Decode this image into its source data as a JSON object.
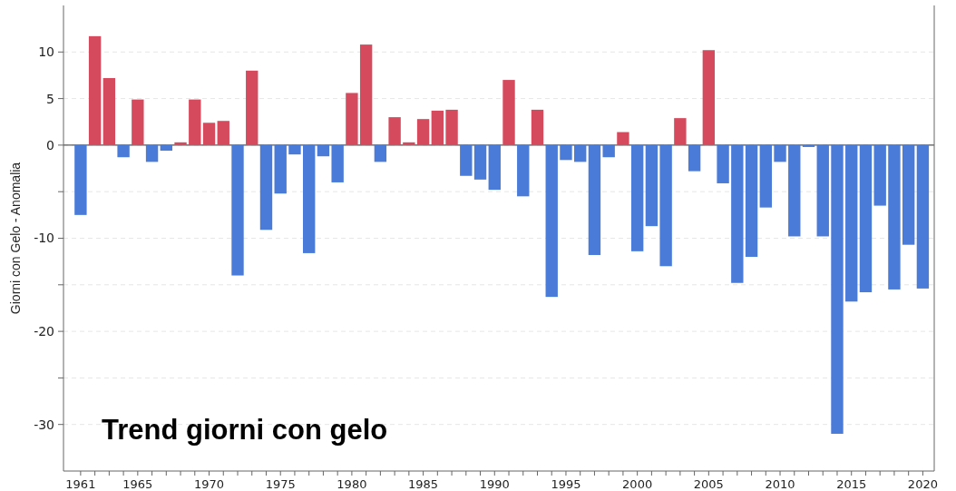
{
  "chart_data": {
    "type": "bar",
    "title": "Trend giorni con gelo",
    "ylabel": "Giorni con Gelo - Anomalia",
    "x": [
      1961,
      1962,
      1963,
      1964,
      1965,
      1966,
      1967,
      1968,
      1969,
      1970,
      1971,
      1972,
      1973,
      1974,
      1975,
      1976,
      1977,
      1978,
      1979,
      1980,
      1981,
      1982,
      1983,
      1984,
      1985,
      1986,
      1987,
      1988,
      1989,
      1990,
      1991,
      1992,
      1993,
      1994,
      1995,
      1996,
      1997,
      1998,
      1999,
      2000,
      2001,
      2002,
      2003,
      2004,
      2005,
      2006,
      2007,
      2008,
      2009,
      2010,
      2011,
      2012,
      2013,
      2014,
      2015,
      2016,
      2017,
      2018,
      2019,
      2020
    ],
    "values": [
      -7.5,
      11.7,
      7.2,
      -1.3,
      4.9,
      -1.8,
      -0.6,
      0.3,
      4.9,
      2.4,
      2.6,
      -14.0,
      8.0,
      -9.1,
      -5.2,
      -1.0,
      -11.6,
      -1.2,
      -4.0,
      5.6,
      10.8,
      -1.8,
      3.0,
      0.3,
      2.8,
      3.7,
      3.8,
      -3.3,
      -3.7,
      -4.8,
      7.0,
      -5.5,
      3.8,
      -16.3,
      -1.6,
      -1.8,
      -11.8,
      -1.3,
      1.4,
      -11.4,
      -8.7,
      -13.0,
      2.9,
      -2.8,
      10.2,
      -4.1,
      -14.8,
      -12.0,
      -6.7,
      -1.8,
      -9.8,
      -0.2,
      -9.8,
      -31.0,
      -16.8,
      -15.8,
      -6.5,
      -15.5,
      -10.7,
      -15.4
    ],
    "colors": [
      "#4a7bd8",
      "#d64a5d",
      "#d64a5d",
      "#4a7bd8",
      "#d64a5d",
      "#4a7bd8",
      "#4a7bd8",
      "#d64a5d",
      "#d64a5d",
      "#d64a5d",
      "#d64a5d",
      "#4a7bd8",
      "#d64a5d",
      "#4a7bd8",
      "#4a7bd8",
      "#4a7bd8",
      "#4a7bd8",
      "#4a7bd8",
      "#4a7bd8",
      "#d64a5d",
      "#d64a5d",
      "#4a7bd8",
      "#d64a5d",
      "#d64a5d",
      "#d64a5d",
      "#d64a5d",
      "#d64a5d",
      "#4a7bd8",
      "#4a7bd8",
      "#4a7bd8",
      "#d64a5d",
      "#4a7bd8",
      "#d64a5d",
      "#4a7bd8",
      "#4a7bd8",
      "#4a7bd8",
      "#4a7bd8",
      "#4a7bd8",
      "#d64a5d",
      "#4a7bd8",
      "#4a7bd8",
      "#4a7bd8",
      "#d64a5d",
      "#4a7bd8",
      "#d64a5d",
      "#4a7bd8",
      "#4a7bd8",
      "#4a7bd8",
      "#4a7bd8",
      "#4a7bd8",
      "#4a7bd8",
      "#4a7bd8",
      "#4a7bd8",
      "#4a7bd8",
      "#4a7bd8",
      "#4a7bd8",
      "#4a7bd8",
      "#4a7bd8",
      "#4a7bd8",
      "#4a7bd8"
    ],
    "xlim": [
      1959.8,
      2020.8
    ],
    "xticks": [
      {
        "value": 1961,
        "label": "1961"
      },
      {
        "value": 1962,
        "label": null
      },
      {
        "value": 1963,
        "label": null
      },
      {
        "value": 1964,
        "label": null
      },
      {
        "value": 1965,
        "label": "1965"
      },
      {
        "value": 1966,
        "label": null
      },
      {
        "value": 1967,
        "label": null
      },
      {
        "value": 1968,
        "label": null
      },
      {
        "value": 1969,
        "label": null
      },
      {
        "value": 1970,
        "label": "1970"
      },
      {
        "value": 1971,
        "label": null
      },
      {
        "value": 1972,
        "label": null
      },
      {
        "value": 1973,
        "label": null
      },
      {
        "value": 1974,
        "label": null
      },
      {
        "value": 1975,
        "label": "1975"
      },
      {
        "value": 1976,
        "label": null
      },
      {
        "value": 1977,
        "label": null
      },
      {
        "value": 1978,
        "label": null
      },
      {
        "value": 1979,
        "label": null
      },
      {
        "value": 1980,
        "label": "1980"
      },
      {
        "value": 1981,
        "label": null
      },
      {
        "value": 1982,
        "label": null
      },
      {
        "value": 1983,
        "label": null
      },
      {
        "value": 1984,
        "label": null
      },
      {
        "value": 1985,
        "label": "1985"
      },
      {
        "value": 1986,
        "label": null
      },
      {
        "value": 1987,
        "label": null
      },
      {
        "value": 1988,
        "label": null
      },
      {
        "value": 1989,
        "label": null
      },
      {
        "value": 1990,
        "label": "1990"
      },
      {
        "value": 1991,
        "label": null
      },
      {
        "value": 1992,
        "label": null
      },
      {
        "value": 1993,
        "label": null
      },
      {
        "value": 1994,
        "label": null
      },
      {
        "value": 1995,
        "label": "1995"
      },
      {
        "value": 1996,
        "label": null
      },
      {
        "value": 1997,
        "label": null
      },
      {
        "value": 1998,
        "label": null
      },
      {
        "value": 1999,
        "label": null
      },
      {
        "value": 2000,
        "label": "2000"
      },
      {
        "value": 2001,
        "label": null
      },
      {
        "value": 2002,
        "label": null
      },
      {
        "value": 2003,
        "label": null
      },
      {
        "value": 2004,
        "label": null
      },
      {
        "value": 2005,
        "label": "2005"
      },
      {
        "value": 2006,
        "label": null
      },
      {
        "value": 2007,
        "label": null
      },
      {
        "value": 2008,
        "label": null
      },
      {
        "value": 2009,
        "label": null
      },
      {
        "value": 2010,
        "label": "2010"
      },
      {
        "value": 2011,
        "label": null
      },
      {
        "value": 2012,
        "label": null
      },
      {
        "value": 2013,
        "label": null
      },
      {
        "value": 2014,
        "label": null
      },
      {
        "value": 2015,
        "label": "2015"
      },
      {
        "value": 2016,
        "label": null
      },
      {
        "value": 2017,
        "label": null
      },
      {
        "value": 2018,
        "label": null
      },
      {
        "value": 2019,
        "label": null
      },
      {
        "value": 2020,
        "label": "2020"
      }
    ],
    "ylim": [
      -35,
      15
    ],
    "yticks": [
      10,
      {
        "value": 5,
        "label": "5"
      },
      0,
      {
        "value": -5,
        "label": null
      },
      -10,
      {
        "value": -15,
        "label": null
      },
      -20,
      {
        "value": -25,
        "label": null
      },
      -30
    ],
    "grid": "y"
  }
}
